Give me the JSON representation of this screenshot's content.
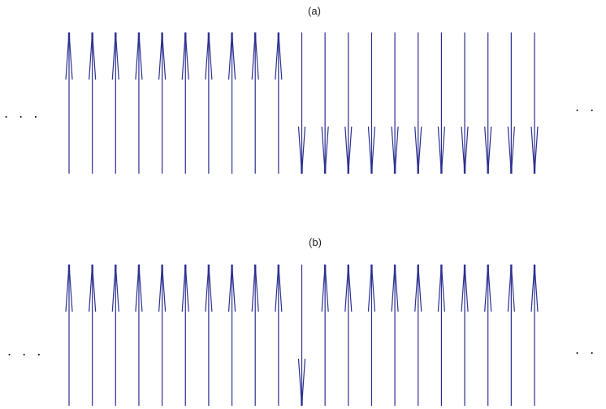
{
  "panels": [
    {
      "label": "(a)",
      "left_ellipsis": ". . .",
      "right_ellipsis": ". . .",
      "spins": [
        "up",
        "up",
        "up",
        "up",
        "up",
        "up",
        "up",
        "up",
        "up",
        "up",
        "down",
        "down",
        "down",
        "down",
        "down",
        "down",
        "down",
        "down",
        "down",
        "down",
        "down"
      ]
    },
    {
      "label": "(b)",
      "left_ellipsis": ". . .",
      "right_ellipsis": ". . .",
      "spins": [
        "up",
        "up",
        "up",
        "up",
        "up",
        "up",
        "up",
        "up",
        "up",
        "up",
        "down",
        "up",
        "up",
        "up",
        "up",
        "up",
        "up",
        "up",
        "up",
        "up",
        "up"
      ]
    }
  ],
  "colors": {
    "spin_line": "#2b2f8f",
    "text": "#222222"
  }
}
